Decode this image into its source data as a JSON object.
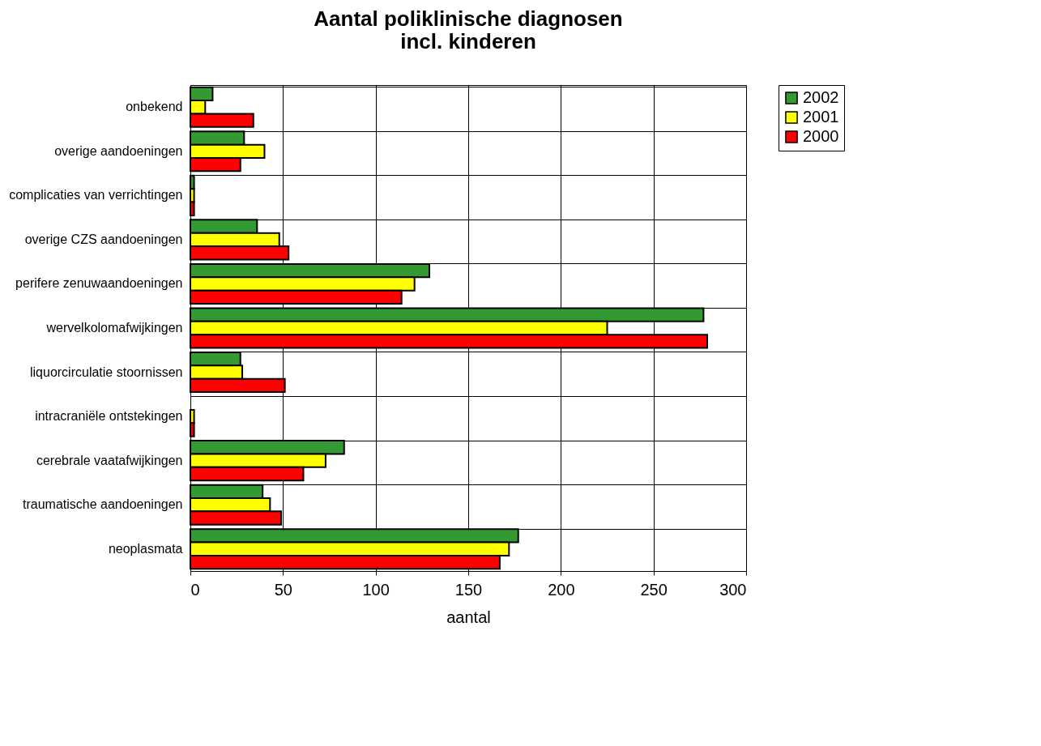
{
  "chart_data": {
    "type": "bar",
    "orientation": "horizontal",
    "title": "Aantal poliklinische diagnosen\nincl. kinderen",
    "xlabel": "aantal",
    "categories": [
      "onbekend",
      "overige aandoeningen",
      "complicaties van verrichtingen",
      "overige CZS aandoeningen",
      "perifere zenuwaandoeningen",
      "wervelkolomafwijkingen",
      "liquorcirculatie stoornissen",
      "intracraniële ontstekingen",
      "cerebrale vaatafwijkingen",
      "traumatische aandoeningen",
      "neoplasmata"
    ],
    "series": [
      {
        "name": "2002",
        "color": "#339933",
        "values": [
          12,
          29,
          2,
          36,
          129,
          277,
          27,
          null,
          83,
          39,
          177
        ]
      },
      {
        "name": "2001",
        "color": "#ffff00",
        "values": [
          8,
          40,
          2,
          48,
          121,
          225,
          28,
          2,
          73,
          43,
          172
        ]
      },
      {
        "name": "2000",
        "color": "#ff0000",
        "values": [
          34,
          27,
          2,
          53,
          114,
          279,
          51,
          2,
          61,
          49,
          167
        ]
      }
    ],
    "xlim": [
      0,
      300
    ],
    "xticks": [
      0,
      50,
      100,
      150,
      200,
      250,
      300
    ],
    "grid": true,
    "legend": "top right"
  }
}
